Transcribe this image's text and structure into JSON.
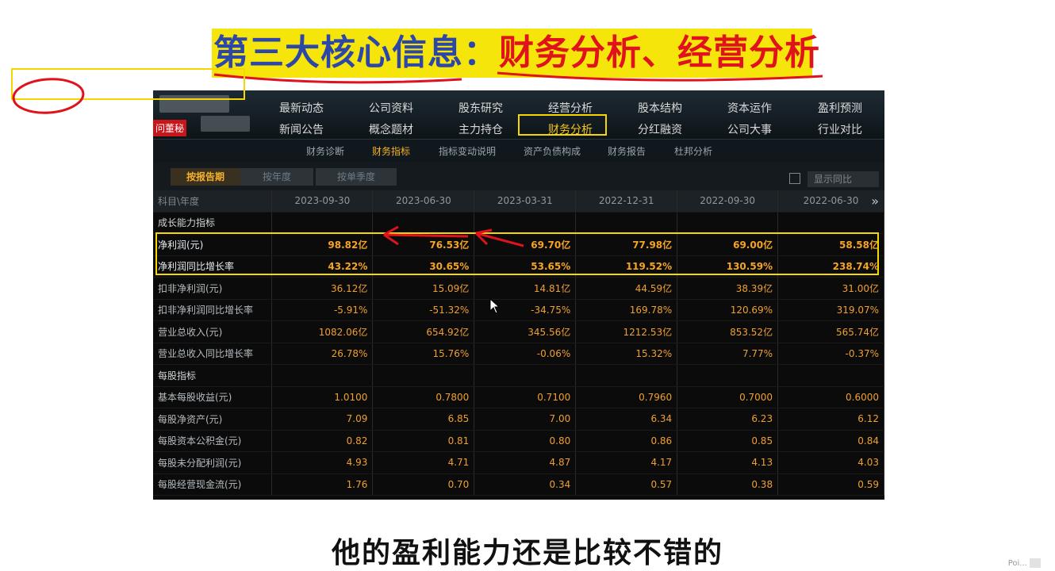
{
  "headline": {
    "part_a": "第三大核心信息：",
    "part_b": "财务分析、经营分析"
  },
  "app": {
    "ask_badge": "问董秘",
    "nav_row1": [
      "最新动态",
      "公司资料",
      "股东研究",
      "经营分析",
      "股本结构",
      "资本运作",
      "盈利预测"
    ],
    "nav_row2": [
      "新闻公告",
      "概念题材",
      "主力持仓",
      "财务分析",
      "分红融资",
      "公司大事",
      "行业对比"
    ],
    "active_nav": "财务分析",
    "subnav": [
      "财务诊断",
      "财务指标",
      "指标变动说明",
      "资产负债构成",
      "财务报告",
      "杜邦分析"
    ],
    "active_subnav": "财务指标",
    "period_buttons": [
      "按报告期",
      "按年度",
      "按单季度"
    ],
    "active_period": "按报告期",
    "show_yoy": "显示同比",
    "next_icon": "»"
  },
  "table": {
    "header_label": "科目\\年度",
    "dates": [
      "2023-09-30",
      "2023-06-30",
      "2023-03-31",
      "2022-12-31",
      "2022-09-30",
      "2022-06-30"
    ],
    "rows": [
      {
        "label": "成长能力指标",
        "section": true
      },
      {
        "label": "净利润(元)",
        "values": [
          "98.82亿",
          "76.53亿",
          "69.70亿",
          "77.98亿",
          "69.00亿",
          "58.58亿"
        ],
        "highlight": true
      },
      {
        "label": "净利润同比增长率",
        "values": [
          "43.22%",
          "30.65%",
          "53.65%",
          "119.52%",
          "130.59%",
          "238.74%"
        ],
        "highlight": true
      },
      {
        "label": "扣非净利润(元)",
        "values": [
          "36.12亿",
          "15.09亿",
          "14.81亿",
          "44.59亿",
          "38.39亿",
          "31.00亿"
        ]
      },
      {
        "label": "扣非净利润同比增长率",
        "values": [
          "-5.91%",
          "-51.32%",
          "-34.75%",
          "169.78%",
          "120.69%",
          "319.07%"
        ]
      },
      {
        "label": "营业总收入(元)",
        "values": [
          "1082.06亿",
          "654.92亿",
          "345.56亿",
          "1212.53亿",
          "853.52亿",
          "565.74亿"
        ]
      },
      {
        "label": "营业总收入同比增长率",
        "values": [
          "26.78%",
          "15.76%",
          "-0.06%",
          "15.32%",
          "7.77%",
          "-0.37%"
        ]
      },
      {
        "label": "每股指标",
        "section": true
      },
      {
        "label": "基本每股收益(元)",
        "values": [
          "1.0100",
          "0.7800",
          "0.7100",
          "0.7960",
          "0.7000",
          "0.6000"
        ]
      },
      {
        "label": "每股净资产(元)",
        "values": [
          "7.09",
          "6.85",
          "7.00",
          "6.34",
          "6.23",
          "6.12"
        ]
      },
      {
        "label": "每股资本公积金(元)",
        "values": [
          "0.82",
          "0.81",
          "0.80",
          "0.86",
          "0.85",
          "0.84"
        ]
      },
      {
        "label": "每股未分配利润(元)",
        "values": [
          "4.93",
          "4.71",
          "4.87",
          "4.17",
          "4.13",
          "4.03"
        ]
      },
      {
        "label": "每股经营现金流(元)",
        "values": [
          "1.76",
          "0.70",
          "0.34",
          "0.57",
          "0.38",
          "0.59"
        ]
      }
    ]
  },
  "subtitle": "他的盈利能力还是比较不错的",
  "watermark": "Poi..."
}
